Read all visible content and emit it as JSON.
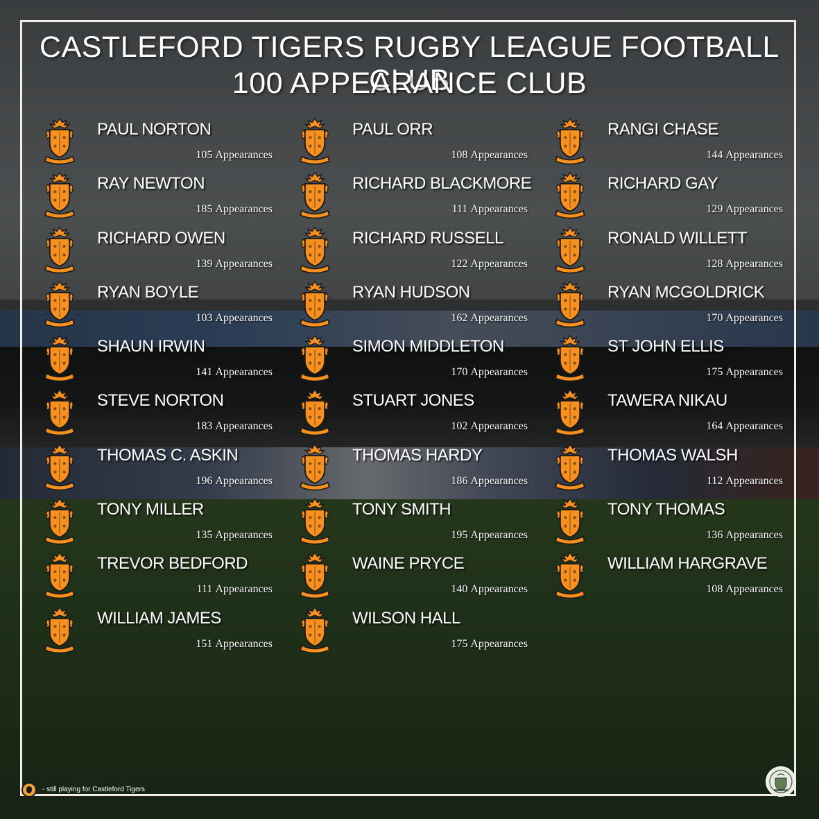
{
  "title": {
    "line1": "CASTLEFORD TIGERS RUGBY LEAGUE FOOTBALL CLUB",
    "line2": "100 APPEARANCE CLUB"
  },
  "appearance_suffix": "Appearances",
  "columns": [
    {
      "players": [
        {
          "name": "PAUL NORTON",
          "appearances": "105"
        },
        {
          "name": "RAY NEWTON",
          "appearances": "185"
        },
        {
          "name": "RICHARD OWEN",
          "appearances": "139"
        },
        {
          "name": "RYAN BOYLE",
          "appearances": "103"
        },
        {
          "name": "SHAUN IRWIN",
          "appearances": "141"
        },
        {
          "name": "STEVE NORTON",
          "appearances": "183"
        },
        {
          "name": "THOMAS C. ASKIN",
          "appearances": "196"
        },
        {
          "name": "TONY MILLER",
          "appearances": "135"
        },
        {
          "name": "TREVOR BEDFORD",
          "appearances": "111"
        },
        {
          "name": "WILLIAM JAMES",
          "appearances": "151"
        }
      ]
    },
    {
      "players": [
        {
          "name": "PAUL ORR",
          "appearances": "108"
        },
        {
          "name": "RICHARD BLACKMORE",
          "appearances": "111"
        },
        {
          "name": "RICHARD RUSSELL",
          "appearances": "122"
        },
        {
          "name": "RYAN HUDSON",
          "appearances": "162"
        },
        {
          "name": "SIMON MIDDLETON",
          "appearances": "170"
        },
        {
          "name": "STUART JONES",
          "appearances": "102"
        },
        {
          "name": "THOMAS HARDY",
          "appearances": "186"
        },
        {
          "name": "TONY SMITH",
          "appearances": "195"
        },
        {
          "name": "WAINE PRYCE",
          "appearances": "140"
        },
        {
          "name": "WILSON HALL",
          "appearances": "175"
        }
      ]
    },
    {
      "players": [
        {
          "name": "RANGI CHASE",
          "appearances": "144"
        },
        {
          "name": "RICHARD GAY",
          "appearances": "129"
        },
        {
          "name": "RONALD WILLETT",
          "appearances": "128"
        },
        {
          "name": "RYAN MCGOLDRICK",
          "appearances": "170"
        },
        {
          "name": "ST JOHN ELLIS",
          "appearances": "175"
        },
        {
          "name": "TAWERA NIKAU",
          "appearances": "164"
        },
        {
          "name": "THOMAS WALSH",
          "appearances": "112"
        },
        {
          "name": "TONY THOMAS",
          "appearances": "136"
        },
        {
          "name": "WILLIAM HARGRAVE",
          "appearances": "108"
        }
      ]
    }
  ],
  "legend": {
    "text": "- still playing for Castleford Tigers",
    "icon": "current-player-badge-icon"
  },
  "icons": {
    "player_badge": "castleford-crest-icon",
    "footer_logo": "heritage-crest-icon"
  },
  "colors": {
    "badge_orange": "#f7901e",
    "badge_outline": "#1a1a1a",
    "frame": "#f2ede4",
    "text": "#ffffff"
  }
}
